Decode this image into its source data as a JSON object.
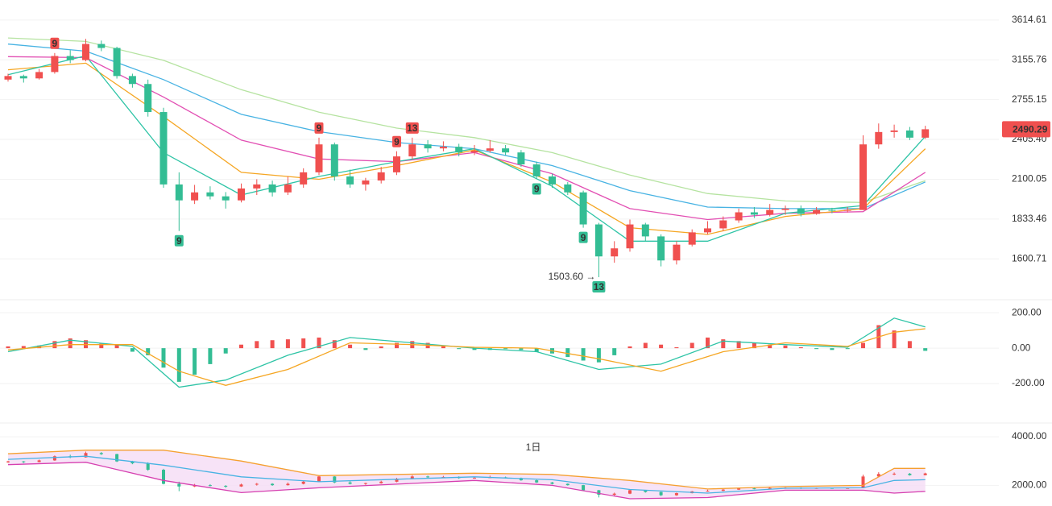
{
  "chart_data": [
    {
      "type": "candlestick",
      "log": true,
      "ylim": [
        1400,
        3870
      ],
      "yticks": [
        3614.61,
        3155.76,
        2755.15,
        {
          "value": 2405.4,
          "label": "2405.40"
        },
        2100.05,
        1833.46,
        1600.71
      ],
      "grid": true,
      "up_color": "#f0504f",
      "down_color": "#33bd94",
      "candles": [
        [
          2950,
          3010,
          2930,
          2986
        ],
        [
          2986,
          3000,
          2920,
          2962
        ],
        [
          2962,
          3060,
          2950,
          3027
        ],
        [
          3027,
          3230,
          3010,
          3197
        ],
        [
          3197,
          3260,
          3120,
          3153
        ],
        [
          3153,
          3390,
          3140,
          3331
        ],
        [
          3331,
          3370,
          3250,
          3286
        ],
        [
          3286,
          3300,
          2960,
          2986
        ],
        [
          2986,
          3010,
          2870,
          2906
        ],
        [
          2906,
          2950,
          2600,
          2641
        ],
        [
          2641,
          2680,
          2040,
          2063
        ],
        [
          2063,
          2150,
          1760,
          1954
        ],
        [
          1954,
          2060,
          1930,
          2008
        ],
        [
          2008,
          2050,
          1960,
          1981
        ],
        [
          1981,
          2010,
          1900,
          1954
        ],
        [
          1954,
          2070,
          1940,
          2035
        ],
        [
          2035,
          2100,
          1990,
          2063
        ],
        [
          2063,
          2090,
          1980,
          2008
        ],
        [
          2008,
          2120,
          1990,
          2063
        ],
        [
          2063,
          2180,
          2040,
          2150
        ],
        [
          2150,
          2420,
          2130,
          2365
        ],
        [
          2365,
          2380,
          2090,
          2120
        ],
        [
          2120,
          2170,
          2040,
          2063
        ],
        [
          2063,
          2110,
          2020,
          2091
        ],
        [
          2091,
          2190,
          2070,
          2150
        ],
        [
          2150,
          2310,
          2130,
          2270
        ],
        [
          2270,
          2420,
          2250,
          2365
        ],
        [
          2365,
          2400,
          2300,
          2333
        ],
        [
          2333,
          2390,
          2310,
          2346
        ],
        [
          2346,
          2370,
          2270,
          2301
        ],
        [
          2301,
          2360,
          2280,
          2314
        ],
        [
          2314,
          2400,
          2300,
          2333
        ],
        [
          2333,
          2360,
          2280,
          2301
        ],
        [
          2301,
          2320,
          2190,
          2209
        ],
        [
          2209,
          2230,
          2100,
          2120
        ],
        [
          2120,
          2140,
          2040,
          2063
        ],
        [
          2063,
          2080,
          1990,
          2008
        ],
        [
          2008,
          2020,
          1780,
          1800
        ],
        [
          1800,
          1810,
          1503.6,
          1614
        ],
        [
          1614,
          1700,
          1580,
          1659
        ],
        [
          1659,
          1830,
          1640,
          1800
        ],
        [
          1800,
          1810,
          1700,
          1728
        ],
        [
          1728,
          1740,
          1560,
          1592
        ],
        [
          1592,
          1700,
          1570,
          1680
        ],
        [
          1680,
          1770,
          1670,
          1752
        ],
        [
          1752,
          1820,
          1740,
          1776
        ],
        [
          1776,
          1850,
          1760,
          1825
        ],
        [
          1825,
          1900,
          1810,
          1876
        ],
        [
          1876,
          1910,
          1840,
          1861
        ],
        [
          1861,
          1930,
          1850,
          1891
        ],
        [
          1891,
          1920,
          1860,
          1900
        ],
        [
          1900,
          1920,
          1850,
          1866
        ],
        [
          1866,
          1910,
          1860,
          1891
        ],
        [
          1891,
          1905,
          1870,
          1886
        ],
        [
          1886,
          1910,
          1875,
          1891
        ],
        [
          1891,
          2440,
          1890,
          2365
        ],
        [
          2365,
          2540,
          2330,
          2467
        ],
        [
          2467,
          2530,
          2420,
          2480
        ],
        [
          2480,
          2510,
          2400,
          2420
        ],
        [
          2420,
          2520,
          2410,
          2490.29
        ]
      ],
      "series": [
        {
          "color": "#b5e3a0",
          "x": [
            0,
            5,
            10,
            15,
            20,
            25,
            30,
            35,
            40,
            45,
            50,
            55,
            59
          ],
          "values": [
            3400,
            3360,
            3150,
            2850,
            2640,
            2500,
            2420,
            2300,
            2130,
            2000,
            1950,
            1940,
            2090
          ]
        },
        {
          "color": "#48b3e3",
          "x": [
            0,
            5,
            10,
            15,
            20,
            25,
            30,
            35,
            40,
            45,
            50,
            55,
            59
          ],
          "values": [
            3330,
            3250,
            2950,
            2620,
            2470,
            2380,
            2330,
            2200,
            2020,
            1910,
            1900,
            1900,
            2080
          ]
        },
        {
          "color": "#e24fb3",
          "x": [
            0,
            5,
            10,
            15,
            20,
            25,
            30,
            35,
            40,
            45,
            50,
            55,
            59
          ],
          "values": [
            3190,
            3180,
            2780,
            2400,
            2250,
            2230,
            2300,
            2140,
            1900,
            1830,
            1870,
            1880,
            2150
          ]
        },
        {
          "color": "#f5a623",
          "x": [
            0,
            5,
            10,
            15,
            20,
            25,
            30,
            35,
            40,
            45,
            50,
            55,
            59
          ],
          "values": [
            3050,
            3120,
            2600,
            2150,
            2100,
            2200,
            2320,
            2080,
            1780,
            1740,
            1850,
            1900,
            2330
          ]
        },
        {
          "color": "#2ec4a6",
          "x": [
            0,
            5,
            10,
            15,
            20,
            25,
            30,
            35,
            40,
            45,
            50,
            55,
            59
          ],
          "values": [
            3000,
            3200,
            2300,
            1990,
            2120,
            2230,
            2330,
            2050,
            1700,
            1700,
            1870,
            1920,
            2430
          ]
        }
      ],
      "markers": [
        {
          "candle": 3,
          "label": "9",
          "kind": "up"
        },
        {
          "candle": 20,
          "label": "9",
          "kind": "up"
        },
        {
          "candle": 25,
          "label": "9",
          "kind": "up"
        },
        {
          "candle": 26,
          "label": "13",
          "kind": "up"
        },
        {
          "candle": 11,
          "label": "9",
          "kind": "down"
        },
        {
          "candle": 34,
          "label": "9",
          "kind": "down"
        },
        {
          "candle": 37,
          "label": "9",
          "kind": "down"
        },
        {
          "candle": 38,
          "label": "13",
          "kind": "down"
        }
      ],
      "annotation": {
        "candle": 38,
        "text": "1503.60 →"
      }
    },
    {
      "type": "bar",
      "ylim": [
        -400,
        260
      ],
      "yticks": [
        {
          "value": 200,
          "label": "200.00"
        },
        {
          "value": 0,
          "label": "0.00"
        },
        {
          "value": -200,
          "label": "-200.00"
        }
      ],
      "grid": true,
      "up_color": "#f0504f",
      "down_color": "#33bd94",
      "values": [
        10,
        12,
        15,
        40,
        55,
        45,
        25,
        20,
        -20,
        -40,
        -110,
        -190,
        -150,
        -90,
        -30,
        20,
        40,
        45,
        50,
        55,
        60,
        45,
        20,
        -10,
        10,
        30,
        40,
        30,
        10,
        -5,
        -10,
        -10,
        -5,
        -10,
        -20,
        -30,
        -50,
        -70,
        -80,
        -40,
        10,
        30,
        20,
        5,
        30,
        60,
        50,
        40,
        30,
        20,
        15,
        5,
        -5,
        -10,
        -5,
        30,
        130,
        100,
        40,
        -15
      ],
      "series": [
        {
          "color": "#2ec4a6",
          "x": [
            0,
            4,
            8,
            11,
            14,
            18,
            22,
            26,
            30,
            34,
            38,
            42,
            46,
            50,
            54,
            57,
            59
          ],
          "values": [
            -20,
            45,
            10,
            -220,
            -180,
            -40,
            60,
            30,
            0,
            -20,
            -120,
            -90,
            40,
            20,
            5,
            170,
            120
          ]
        },
        {
          "color": "#f5a623",
          "x": [
            0,
            4,
            8,
            11,
            14,
            18,
            22,
            26,
            30,
            34,
            38,
            42,
            46,
            50,
            54,
            57,
            59
          ],
          "values": [
            -10,
            20,
            20,
            -130,
            -210,
            -120,
            30,
            20,
            5,
            0,
            -60,
            -130,
            -20,
            30,
            10,
            90,
            110
          ]
        }
      ]
    },
    {
      "type": "band",
      "ylim": [
        1250,
        4400
      ],
      "yticks": [
        {
          "value": 4000,
          "label": "4000.00"
        },
        {
          "value": 2000,
          "label": "2000.00"
        }
      ],
      "grid": true,
      "period": "1日",
      "fill": "#f5dcf5",
      "series": [
        {
          "color": "#f5a030",
          "x": [
            0,
            5,
            10,
            15,
            20,
            25,
            30,
            35,
            40,
            45,
            50,
            55,
            57,
            59
          ],
          "values": [
            3300,
            3450,
            3450,
            3000,
            2400,
            2450,
            2500,
            2450,
            2200,
            1850,
            1950,
            2000,
            2700,
            2700
          ]
        },
        {
          "color": "#48b3e3",
          "x": [
            0,
            5,
            10,
            15,
            20,
            25,
            30,
            35,
            40,
            45,
            50,
            55,
            57,
            59
          ],
          "values": [
            3070,
            3200,
            2830,
            2350,
            2150,
            2250,
            2350,
            2230,
            1830,
            1680,
            1880,
            1900,
            2200,
            2230
          ]
        },
        {
          "color": "#d63fb0",
          "x": [
            0,
            5,
            10,
            15,
            20,
            25,
            30,
            35,
            40,
            45,
            50,
            55,
            57,
            59
          ],
          "values": [
            2850,
            2950,
            2200,
            1700,
            1900,
            2050,
            2200,
            2000,
            1450,
            1500,
            1800,
            1800,
            1680,
            1750
          ]
        }
      ]
    }
  ]
}
